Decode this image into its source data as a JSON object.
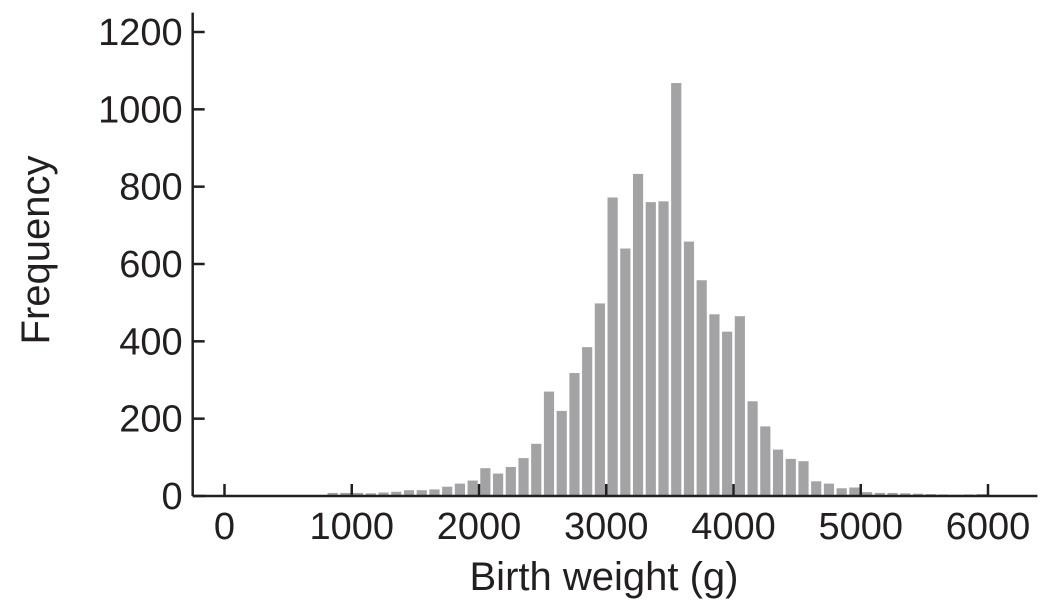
{
  "chart_data": {
    "type": "bar",
    "title": "",
    "xlabel": "Birth weight (g)",
    "ylabel": "Frequency",
    "xlim": [
      -250,
      6200
    ],
    "ylim": [
      0,
      1250
    ],
    "xticks": [
      0,
      1000,
      2000,
      3000,
      4000,
      5000,
      6000
    ],
    "yticks": [
      0,
      200,
      400,
      600,
      800,
      1000,
      1200
    ],
    "grid": false,
    "bin_width": 100,
    "series": [
      {
        "color": "#a3a3a6",
        "x": [
          850,
          950,
          1050,
          1150,
          1250,
          1350,
          1450,
          1550,
          1650,
          1750,
          1850,
          1950,
          2050,
          2150,
          2250,
          2350,
          2450,
          2550,
          2650,
          2750,
          2850,
          2950,
          3050,
          3150,
          3250,
          3350,
          3450,
          3550,
          3650,
          3750,
          3850,
          3950,
          4050,
          4150,
          4250,
          4350,
          4450,
          4550,
          4650,
          4750,
          4850,
          4950,
          5050,
          5150,
          5250,
          5350,
          5450,
          5550,
          5650,
          5750,
          5850,
          5950
        ],
        "values": [
          8,
          8,
          8,
          7,
          9,
          11,
          15,
          15,
          17,
          24,
          32,
          40,
          72,
          58,
          75,
          98,
          135,
          270,
          220,
          318,
          385,
          498,
          772,
          640,
          833,
          760,
          762,
          1068,
          658,
          558,
          470,
          425,
          465,
          245,
          180,
          120,
          96,
          90,
          38,
          32,
          20,
          22,
          10,
          8,
          8,
          7,
          6,
          5,
          4,
          3,
          4,
          5
        ]
      }
    ]
  }
}
